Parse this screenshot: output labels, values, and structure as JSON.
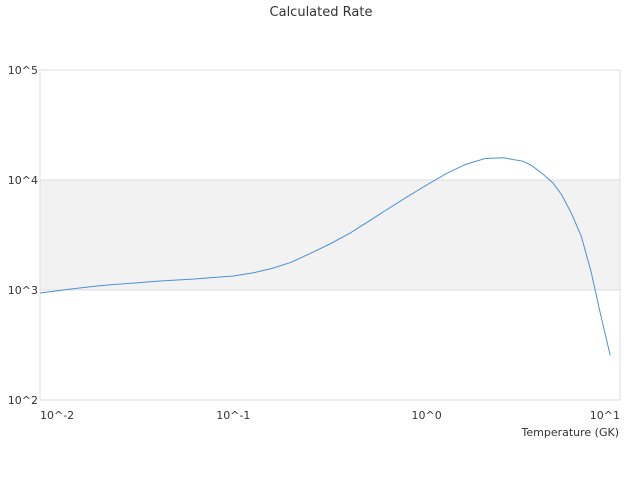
{
  "chart_data": {
    "type": "line",
    "title": "Calculated Rate",
    "xlabel": "Temperature (GK)",
    "ylabel": "",
    "x_scale": "log",
    "y_scale": "log",
    "xlim": [
      0.01,
      10
    ],
    "ylim": [
      100,
      100000
    ],
    "x_tick_labels": [
      "10^-2",
      "10^-1",
      "10^0",
      "10^1"
    ],
    "y_tick_labels": [
      "10^2",
      "10^3",
      "10^4",
      "10^5"
    ],
    "band_colors": [
      "#ffffff",
      "#f2f2f2"
    ],
    "series_color": "#4a90d9",
    "grid": true,
    "series": [
      {
        "x": [
          0.01,
          0.0126,
          0.0158,
          0.02,
          0.025,
          0.0316,
          0.04,
          0.05,
          0.063,
          0.079,
          0.1,
          0.126,
          0.158,
          0.2,
          0.25,
          0.316,
          0.4,
          0.5,
          0.63,
          0.79,
          1.0,
          1.26,
          1.58,
          2.0,
          2.5,
          3.16,
          3.5,
          4.0,
          4.5,
          5.0,
          5.6,
          6.3,
          7.1,
          7.9,
          8.9
        ],
        "y": [
          940,
          990,
          1040,
          1090,
          1130,
          1160,
          1200,
          1230,
          1260,
          1300,
          1340,
          1430,
          1570,
          1790,
          2150,
          2620,
          3280,
          4200,
          5450,
          7020,
          9000,
          11400,
          13800,
          15700,
          15900,
          14800,
          13500,
          11300,
          9400,
          7300,
          5000,
          3100,
          1450,
          620,
          255
        ]
      }
    ]
  }
}
